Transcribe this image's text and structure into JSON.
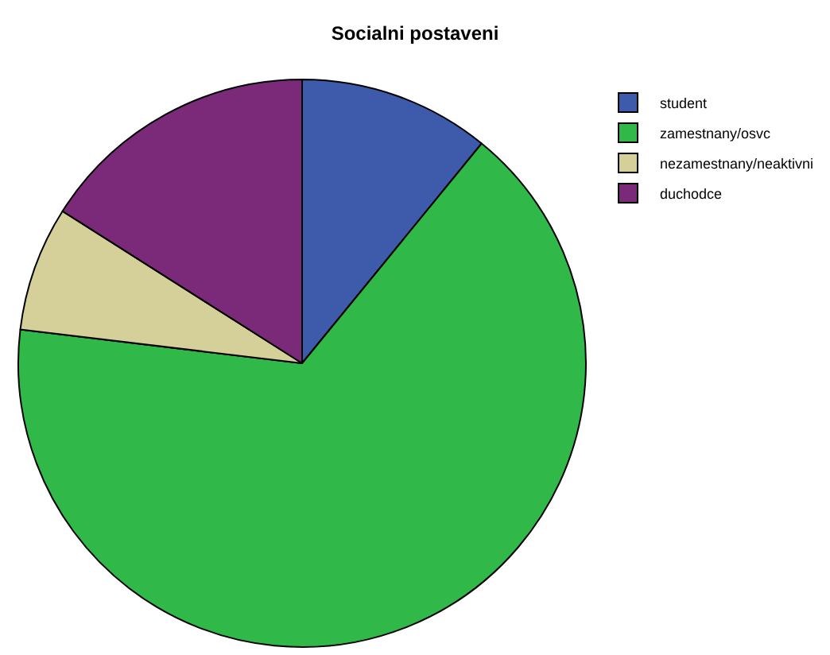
{
  "chart_data": {
    "type": "pie",
    "title": "Socialni postaveni",
    "categories": [
      "student",
      "zamestnany/osvc",
      "nezamestnany/neaktivni",
      "duchodce"
    ],
    "values": [
      10.9,
      66.0,
      7.1,
      16.0
    ],
    "colors": [
      "#3e5aab",
      "#30b848",
      "#d5d09a",
      "#7b2a7a"
    ],
    "legend": "top right"
  }
}
